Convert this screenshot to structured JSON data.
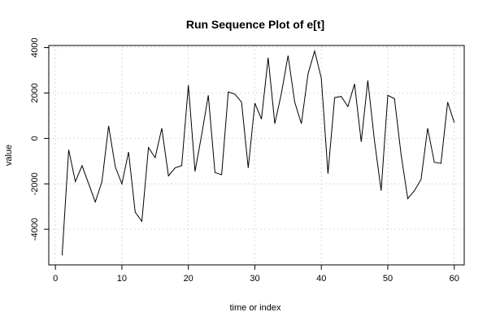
{
  "chart_data": {
    "type": "line",
    "title": "Run Sequence Plot of e[t]",
    "xlabel": "time or index",
    "ylabel": "value",
    "xlim": [
      0,
      60
    ],
    "ylim": [
      -5200,
      4000
    ],
    "xticks": [
      0,
      10,
      20,
      30,
      40,
      50,
      60
    ],
    "yticks": [
      -4000,
      -2000,
      0,
      2000,
      4000
    ],
    "grid": true,
    "series": [
      {
        "x": [
          1,
          2,
          3,
          4,
          5,
          6,
          7,
          8,
          9,
          10,
          11,
          12,
          13,
          14,
          15,
          16,
          17,
          18,
          19,
          20,
          21,
          22,
          23,
          24,
          25,
          26,
          27,
          28,
          29,
          30,
          31,
          32,
          33,
          34,
          35,
          36,
          37,
          38,
          39,
          40,
          41,
          42,
          43,
          44,
          45,
          46,
          47,
          48,
          49,
          50,
          51,
          52,
          53,
          54,
          55,
          56,
          57,
          58,
          59,
          60
        ],
        "values": [
          -5150,
          -500,
          -1900,
          -1200,
          -2000,
          -2800,
          -1900,
          550,
          -1250,
          -2000,
          -600,
          -3250,
          -3650,
          -400,
          -850,
          450,
          -1650,
          -1300,
          -1200,
          2350,
          -1450,
          150,
          1900,
          -1500,
          -1600,
          2050,
          1950,
          1600,
          -1300,
          1550,
          850,
          3550,
          650,
          2000,
          3650,
          1600,
          650,
          2850,
          3850,
          2650,
          -1550,
          1800,
          1850,
          1400,
          2400,
          -150,
          2550,
          -100,
          -2300,
          1900,
          1750,
          -700,
          -2650,
          -2300,
          -1800,
          450,
          -1050,
          -1100,
          1600,
          700
        ]
      }
    ]
  }
}
